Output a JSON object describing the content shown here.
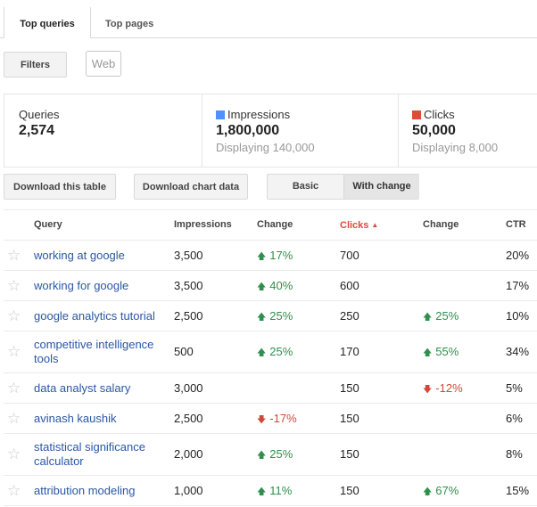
{
  "tabs": [
    {
      "label": "Top queries",
      "active": true
    },
    {
      "label": "Top pages",
      "active": false
    }
  ],
  "filters": {
    "button_label": "Filters",
    "search_type": "Web"
  },
  "summary": {
    "queries": {
      "label": "Queries",
      "value": "2,574"
    },
    "impressions": {
      "label": "Impressions",
      "value": "1,800,000",
      "sub": "Displaying 140,000",
      "color": "#4d90fe"
    },
    "clicks": {
      "label": "Clicks",
      "value": "50,000",
      "sub": "Displaying 8,000",
      "color": "#dd4b39"
    }
  },
  "actions": {
    "download_table": "Download this table",
    "download_chart": "Download chart data",
    "view_basic": "Basic",
    "view_with_change": "With change"
  },
  "table": {
    "headers": {
      "query": "Query",
      "impressions": "Impressions",
      "change1": "Change",
      "clicks": "Clicks",
      "clicks_sort_icon": "▲",
      "change2": "Change",
      "ctr": "CTR"
    },
    "rows": [
      {
        "query": "working at google",
        "impressions": "3,500",
        "imp_change": "17%",
        "imp_dir": "up",
        "clicks": "700",
        "clk_change": "",
        "clk_dir": "",
        "ctr": "20%"
      },
      {
        "query": "working for google",
        "impressions": "3,500",
        "imp_change": "40%",
        "imp_dir": "up",
        "clicks": "600",
        "clk_change": "",
        "clk_dir": "",
        "ctr": "17%"
      },
      {
        "query": "google analytics tutorial",
        "impressions": "2,500",
        "imp_change": "25%",
        "imp_dir": "up",
        "clicks": "250",
        "clk_change": "25%",
        "clk_dir": "up",
        "ctr": "10%"
      },
      {
        "query": "competitive intelligence tools",
        "impressions": "500",
        "imp_change": "25%",
        "imp_dir": "up",
        "clicks": "170",
        "clk_change": "55%",
        "clk_dir": "up",
        "ctr": "34%"
      },
      {
        "query": "data analyst salary",
        "impressions": "3,000",
        "imp_change": "",
        "imp_dir": "",
        "clicks": "150",
        "clk_change": "-12%",
        "clk_dir": "down",
        "ctr": "5%"
      },
      {
        "query": "avinash kaushik",
        "impressions": "2,500",
        "imp_change": "-17%",
        "imp_dir": "down",
        "clicks": "150",
        "clk_change": "",
        "clk_dir": "",
        "ctr": "6%"
      },
      {
        "query": "statistical significance calculator",
        "impressions": "2,000",
        "imp_change": "25%",
        "imp_dir": "up",
        "clicks": "150",
        "clk_change": "",
        "clk_dir": "",
        "ctr": "8%"
      },
      {
        "query": "attribution modeling",
        "impressions": "1,000",
        "imp_change": "11%",
        "imp_dir": "up",
        "clicks": "150",
        "clk_change": "67%",
        "clk_dir": "up",
        "ctr": "15%"
      }
    ]
  },
  "icons": {
    "star": "☆",
    "up": "🡅",
    "down": "🡇"
  }
}
